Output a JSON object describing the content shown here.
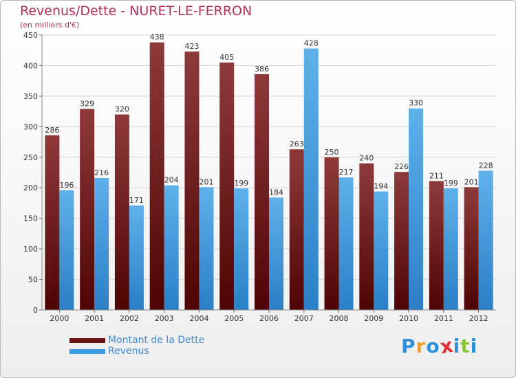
{
  "header": {
    "title": "Revenus/Dette - NURET-LE-FERRON",
    "subtitle": "(en milliers d'€)"
  },
  "chart_data": {
    "type": "bar",
    "title": "Revenus/Dette - NURET-LE-FERRON",
    "subtitle": "(en milliers d'€)",
    "xlabel": "",
    "ylabel": "",
    "categories": [
      "2000",
      "2001",
      "2002",
      "2003",
      "2004",
      "2005",
      "2006",
      "2007",
      "2008",
      "2009",
      "2010",
      "2011",
      "2012"
    ],
    "series": [
      {
        "name": "Montant de la Dette",
        "color": "#7a1a1a",
        "values": [
          286,
          329,
          320,
          438,
          423,
          405,
          386,
          263,
          250,
          240,
          226,
          211,
          201
        ]
      },
      {
        "name": "Revenus",
        "color": "#3b9be0",
        "values": [
          196,
          216,
          171,
          204,
          201,
          199,
          184,
          428,
          217,
          194,
          330,
          199,
          228
        ]
      }
    ],
    "ylim": [
      0,
      450
    ],
    "yticks": [
      0,
      50,
      100,
      150,
      200,
      250,
      300,
      350,
      400,
      450
    ],
    "grid": true,
    "legend_position": "bottom-left"
  },
  "legend": {
    "items": [
      {
        "label": "Montant de la Dette",
        "color": "#6b1414"
      },
      {
        "label": "Revenus",
        "color": "#3b9be0"
      }
    ]
  },
  "logo": {
    "letters": [
      "P",
      "r",
      "o",
      "x",
      "i",
      "t",
      "i"
    ],
    "colors": [
      "#2f8fd8",
      "#f0a020",
      "#2f8fd8",
      "#e03030",
      "#2f8fd8",
      "#8cc63f",
      "#2f8fd8"
    ]
  }
}
